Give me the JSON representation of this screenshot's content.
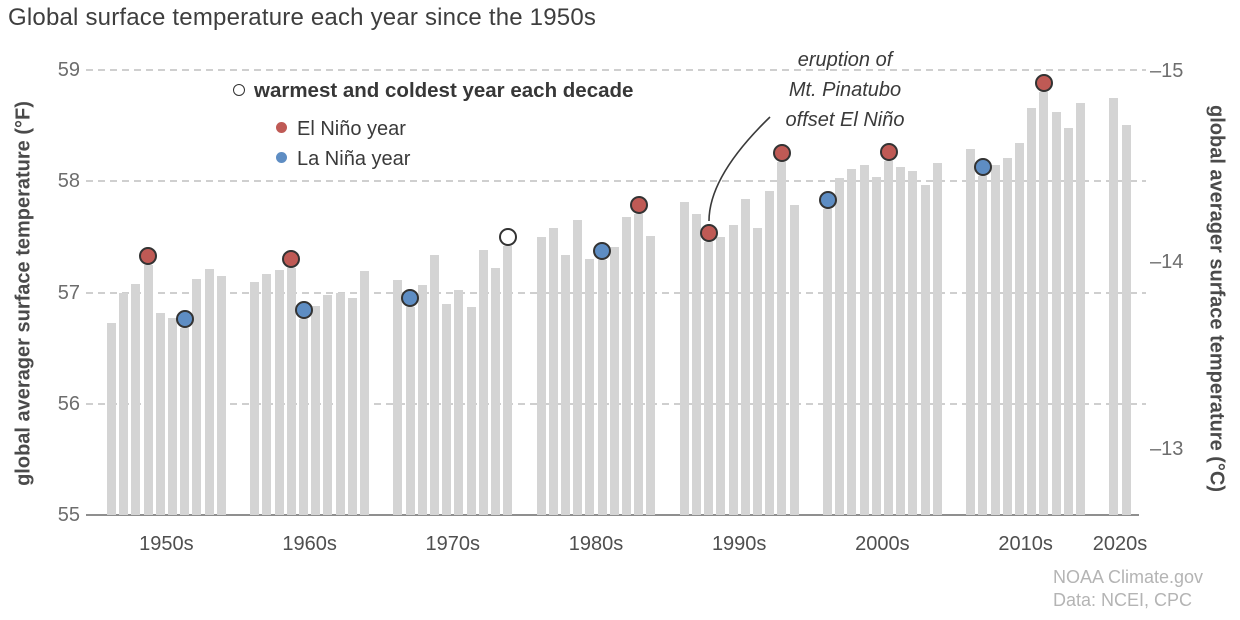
{
  "title": "Global surface temperature each year since the 1950s",
  "legend": {
    "open_label": "warmest and coldest year each decade",
    "el_nino_label": "El Niño year",
    "la_nina_label": "La Niña year"
  },
  "annotation": {
    "lines": [
      "eruption of",
      "Mt. Pinatubo",
      "offset El Niño"
    ]
  },
  "axis_left": {
    "title": "global averager surface temperature (°F)",
    "ticks": [
      "59",
      "58",
      "57",
      "56",
      "55"
    ]
  },
  "axis_right": {
    "title": "global averager surface temperature (°C)",
    "ticks": [
      "–15",
      "–14",
      "–13"
    ]
  },
  "footer": {
    "source": "NOAA Climate.gov",
    "data": "Data: NCEI, CPC"
  },
  "colors": {
    "bar": "#d4d4d4",
    "el_nino_red": "#bf5a55",
    "la_nina_blue": "#5e8dc3",
    "neutral_white": "#ffffff",
    "marker_outline": "#333333",
    "gridline": "#cfcfcf",
    "baseline": "#8f8f8f"
  },
  "chart_data": {
    "type": "bar",
    "title": "Global surface temperature each year since the 1950s",
    "xlabel": "",
    "ylabel_left": "global averager surface temperature (°F)",
    "ylabel_right": "global averager surface temperature (°C)",
    "ylim_f": [
      55,
      59
    ],
    "yticks_f": [
      59,
      58,
      57,
      56,
      55
    ],
    "yticks_c_labels": [
      "–15",
      "–14",
      "–13"
    ],
    "grid": "horizontal-dashed",
    "legend_position": "top-left-inside",
    "x_decade_labels": [
      "1950s",
      "1960s",
      "1970s",
      "1980s",
      "1990s",
      "2000s",
      "2010s",
      "2020s"
    ],
    "marker_legend": {
      "open": "warmest and coldest year each decade",
      "el_nino": "El Niño year",
      "la_nina": "La Niña year"
    },
    "decades": [
      {
        "label": "1950s",
        "first_year": 1950,
        "temps_f": [
          56.73,
          57.0,
          57.08,
          57.25,
          56.82,
          56.77,
          56.68,
          57.12,
          57.21,
          57.15
        ],
        "markers": [
          {
            "year": 1953,
            "type": "el_nino"
          },
          {
            "year": 1956,
            "type": "la_nina"
          }
        ]
      },
      {
        "label": "1960s",
        "first_year": 1960,
        "temps_f": [
          57.09,
          57.17,
          57.2,
          57.22,
          56.76,
          56.88,
          56.98,
          57.0,
          56.95,
          57.19
        ],
        "markers": [
          {
            "year": 1963,
            "type": "el_nino"
          },
          {
            "year": 1964,
            "type": "la_nina"
          }
        ]
      },
      {
        "label": "1970s",
        "first_year": 1970,
        "temps_f": [
          57.11,
          56.87,
          57.07,
          57.34,
          56.9,
          57.02,
          56.87,
          57.38,
          57.22,
          57.42
        ],
        "markers": [
          {
            "year": 1971,
            "type": "la_nina"
          },
          {
            "year": 1979,
            "type": "neutral"
          }
        ]
      },
      {
        "label": "1980s",
        "first_year": 1980,
        "temps_f": [
          57.5,
          57.58,
          57.34,
          57.65,
          57.3,
          57.29,
          57.41,
          57.68,
          57.71,
          57.51
        ],
        "markers": [
          {
            "year": 1985,
            "type": "la_nina"
          },
          {
            "year": 1988,
            "type": "el_nino"
          }
        ]
      },
      {
        "label": "1990s",
        "first_year": 1990,
        "temps_f": [
          57.81,
          57.71,
          57.45,
          57.5,
          57.61,
          57.84,
          57.58,
          57.91,
          58.17,
          57.79
        ],
        "markers": [
          {
            "year": 1992,
            "type": "el_nino",
            "note": "eruption of Mt. Pinatubo offset El Niño"
          },
          {
            "year": 1998,
            "type": "el_nino"
          }
        ]
      },
      {
        "label": "2000s",
        "first_year": 2000,
        "temps_f": [
          57.75,
          58.03,
          58.11,
          58.15,
          58.04,
          58.18,
          58.13,
          58.09,
          57.97,
          58.16
        ],
        "markers": [
          {
            "year": 2000,
            "type": "la_nina"
          },
          {
            "year": 2005,
            "type": "el_nino"
          }
        ]
      },
      {
        "label": "2010s",
        "first_year": 2010,
        "temps_f": [
          58.29,
          58.05,
          58.15,
          58.21,
          58.34,
          58.66,
          58.8,
          58.62,
          58.48,
          58.7
        ],
        "markers": [
          {
            "year": 2011,
            "type": "la_nina"
          },
          {
            "year": 2016,
            "type": "el_nino"
          }
        ]
      },
      {
        "label": "2020s",
        "first_year": 2020,
        "temps_f": [
          58.75,
          58.51
        ],
        "markers": []
      }
    ]
  }
}
